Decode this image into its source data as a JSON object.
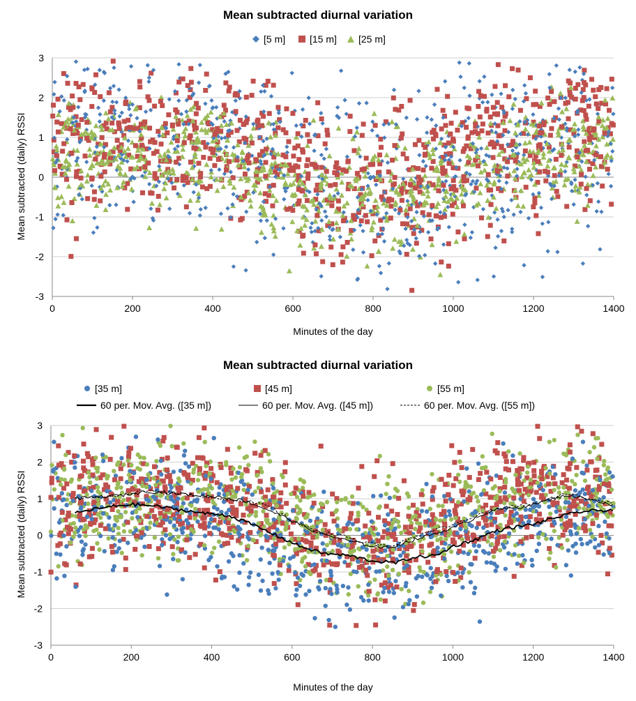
{
  "chart_data": [
    {
      "type": "scatter",
      "title": "Mean subtracted diurnal variation",
      "xlabel": "Minutes of the day",
      "ylabel": "Mean subtracted (daily) RSSI",
      "xlim": [
        0,
        1400
      ],
      "ylim": [
        -3,
        3
      ],
      "x_ticks": [
        "0",
        "200",
        "400",
        "600",
        "800",
        "1000",
        "1200",
        "1400"
      ],
      "y_ticks": [
        "3",
        "2",
        "1",
        "0",
        "-1",
        "-2",
        "-3"
      ],
      "grid": "horizontal",
      "legend_position": "top",
      "series": [
        {
          "name": "[5 m]",
          "marker": "diamond",
          "color": "#4a7ebb",
          "trend": [
            [
              0,
              0.9
            ],
            [
              200,
              0.9
            ],
            [
              400,
              0.8
            ],
            [
              500,
              0.5
            ],
            [
              600,
              0.0
            ],
            [
              700,
              -0.3
            ],
            [
              800,
              -0.4
            ],
            [
              900,
              -0.2
            ],
            [
              1000,
              0.2
            ],
            [
              1100,
              0.4
            ],
            [
              1200,
              0.6
            ],
            [
              1300,
              0.9
            ],
            [
              1400,
              0.9
            ]
          ],
          "spread": 1.2,
          "n": 700
        },
        {
          "name": "[15 m]",
          "marker": "square",
          "color": "#c0504d",
          "trend": [
            [
              0,
              1.0
            ],
            [
              200,
              1.0
            ],
            [
              400,
              0.9
            ],
            [
              500,
              0.6
            ],
            [
              600,
              0.1
            ],
            [
              700,
              -0.3
            ],
            [
              800,
              -0.4
            ],
            [
              900,
              -0.2
            ],
            [
              1000,
              0.4
            ],
            [
              1100,
              0.7
            ],
            [
              1200,
              0.9
            ],
            [
              1300,
              1.2
            ],
            [
              1400,
              1.2
            ]
          ],
          "spread": 0.9,
          "n": 800
        },
        {
          "name": "[25 m]",
          "marker": "triangle",
          "color": "#9bbb59",
          "trend": [
            [
              0,
              0.6
            ],
            [
              200,
              0.6
            ],
            [
              400,
              0.4
            ],
            [
              500,
              0.2
            ],
            [
              600,
              -0.3
            ],
            [
              700,
              -0.5
            ],
            [
              800,
              -0.6
            ],
            [
              900,
              -0.4
            ],
            [
              1000,
              0.0
            ],
            [
              1100,
              0.2
            ],
            [
              1200,
              0.4
            ],
            [
              1300,
              0.5
            ],
            [
              1400,
              0.6
            ]
          ],
          "spread": 0.7,
          "n": 800
        }
      ]
    },
    {
      "type": "scatter",
      "title": "Mean subtracted diurnal variation",
      "xlabel": "Minutes of the day",
      "ylabel": "Mean subtracted (daily) RSSI",
      "xlim": [
        0,
        1400
      ],
      "ylim": [
        -3,
        3
      ],
      "x_ticks": [
        "0",
        "200",
        "400",
        "600",
        "800",
        "1000",
        "1200",
        "1400"
      ],
      "y_ticks": [
        "3",
        "2",
        "1",
        "0",
        "-1",
        "-2",
        "-3"
      ],
      "grid": "horizontal",
      "legend_position": "top",
      "series": [
        {
          "name": "[35 m]",
          "marker": "circle",
          "color": "#4a7ebb",
          "trend": [
            [
              0,
              0.6
            ],
            [
              200,
              0.8
            ],
            [
              400,
              0.5
            ],
            [
              500,
              0.2
            ],
            [
              600,
              -0.3
            ],
            [
              700,
              -0.6
            ],
            [
              800,
              -0.7
            ],
            [
              900,
              -0.5
            ],
            [
              1000,
              -0.1
            ],
            [
              1100,
              0.2
            ],
            [
              1200,
              0.5
            ],
            [
              1300,
              0.7
            ],
            [
              1400,
              0.7
            ]
          ],
          "spread": 0.8,
          "n": 700
        },
        {
          "name": "[45 m]",
          "marker": "square",
          "color": "#c0504d",
          "trend": [
            [
              0,
              1.0
            ],
            [
              200,
              1.2
            ],
            [
              400,
              1.0
            ],
            [
              500,
              0.7
            ],
            [
              600,
              0.1
            ],
            [
              700,
              -0.2
            ],
            [
              800,
              -0.4
            ],
            [
              900,
              -0.2
            ],
            [
              1000,
              0.4
            ],
            [
              1100,
              0.7
            ],
            [
              1200,
              0.9
            ],
            [
              1300,
              1.1
            ],
            [
              1400,
              0.9
            ]
          ],
          "spread": 0.8,
          "n": 800
        },
        {
          "name": "[55 m]",
          "marker": "circle",
          "color": "#9bbb59",
          "trend": [
            [
              0,
              1.0
            ],
            [
              200,
              1.1
            ],
            [
              400,
              1.0
            ],
            [
              500,
              0.7
            ],
            [
              600,
              0.2
            ],
            [
              700,
              -0.1
            ],
            [
              800,
              -0.3
            ],
            [
              900,
              -0.1
            ],
            [
              1000,
              0.4
            ],
            [
              1100,
              0.8
            ],
            [
              1200,
              1.0
            ],
            [
              1300,
              1.1
            ],
            [
              1400,
              1.0
            ]
          ],
          "spread": 0.8,
          "n": 800
        }
      ],
      "moving_averages": [
        {
          "name": "60 per. Mov. Avg. ([35 m])",
          "style": "solid-thick",
          "color": "#000000",
          "points": [
            [
              60,
              0.6
            ],
            [
              100,
              0.7
            ],
            [
              160,
              0.8
            ],
            [
              200,
              0.85
            ],
            [
              260,
              0.8
            ],
            [
              320,
              0.7
            ],
            [
              380,
              0.6
            ],
            [
              440,
              0.55
            ],
            [
              500,
              0.3
            ],
            [
              560,
              0.0
            ],
            [
              620,
              -0.3
            ],
            [
              680,
              -0.5
            ],
            [
              740,
              -0.55
            ],
            [
              800,
              -0.7
            ],
            [
              860,
              -0.75
            ],
            [
              900,
              -0.6
            ],
            [
              960,
              -0.55
            ],
            [
              1000,
              -0.3
            ],
            [
              1060,
              -0.1
            ],
            [
              1100,
              0.1
            ],
            [
              1140,
              0.2
            ],
            [
              1200,
              0.3
            ],
            [
              1260,
              0.5
            ],
            [
              1320,
              0.65
            ],
            [
              1400,
              0.7
            ]
          ]
        },
        {
          "name": "60 per. Mov. Avg. ([45 m])",
          "style": "solid-thin",
          "color": "#000000",
          "points": [
            [
              60,
              1.0
            ],
            [
              120,
              1.05
            ],
            [
              180,
              1.1
            ],
            [
              240,
              1.2
            ],
            [
              300,
              1.15
            ],
            [
              360,
              1.1
            ],
            [
              420,
              1.05
            ],
            [
              480,
              0.95
            ],
            [
              540,
              0.7
            ],
            [
              600,
              0.4
            ],
            [
              660,
              0.1
            ],
            [
              720,
              -0.1
            ],
            [
              780,
              -0.25
            ],
            [
              840,
              -0.35
            ],
            [
              880,
              -0.2
            ],
            [
              940,
              0.0
            ],
            [
              1000,
              0.2
            ],
            [
              1060,
              0.5
            ],
            [
              1100,
              0.7
            ],
            [
              1160,
              0.75
            ],
            [
              1220,
              0.9
            ],
            [
              1280,
              1.1
            ],
            [
              1340,
              1.0
            ],
            [
              1400,
              0.8
            ]
          ]
        },
        {
          "name": "60 per. Mov. Avg. ([55 m])",
          "style": "dashed",
          "color": "#000000",
          "points": [
            [
              60,
              1.0
            ],
            [
              120,
              1.05
            ],
            [
              180,
              1.1
            ],
            [
              240,
              1.25
            ],
            [
              300,
              1.15
            ],
            [
              360,
              1.1
            ],
            [
              420,
              1.0
            ],
            [
              480,
              0.95
            ],
            [
              540,
              0.8
            ],
            [
              600,
              0.4
            ],
            [
              660,
              0.1
            ],
            [
              720,
              0.0
            ],
            [
              780,
              -0.2
            ],
            [
              840,
              -0.3
            ],
            [
              880,
              -0.15
            ],
            [
              940,
              0.1
            ],
            [
              1000,
              0.3
            ],
            [
              1060,
              0.55
            ],
            [
              1100,
              0.7
            ],
            [
              1160,
              0.8
            ],
            [
              1220,
              0.9
            ],
            [
              1280,
              1.15
            ],
            [
              1340,
              1.0
            ],
            [
              1400,
              0.9
            ]
          ]
        }
      ]
    }
  ]
}
